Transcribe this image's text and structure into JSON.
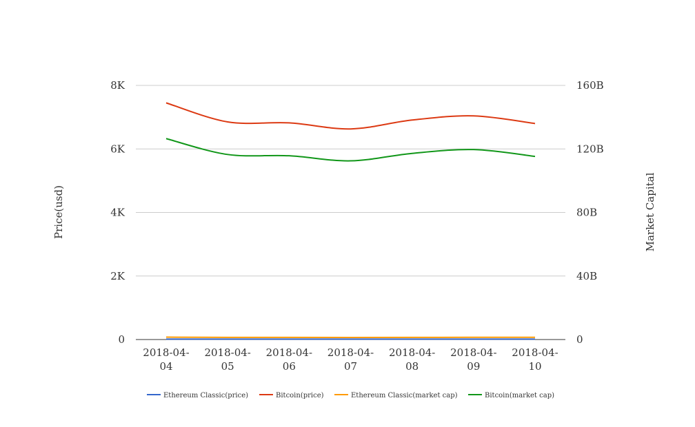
{
  "chart_data": {
    "type": "line",
    "title": "",
    "x": [
      "2018-04-04",
      "2018-04-05",
      "2018-04-06",
      "2018-04-07",
      "2018-04-08",
      "2018-04-09",
      "2018-04-10"
    ],
    "x_tick_labels": [
      [
        "2018-04-",
        "04"
      ],
      [
        "2018-04-",
        "05"
      ],
      [
        "2018-04-",
        "06"
      ],
      [
        "2018-04-",
        "07"
      ],
      [
        "2018-04-",
        "08"
      ],
      [
        "2018-04-",
        "09"
      ],
      [
        "2018-04-",
        "10"
      ]
    ],
    "ylabel_left": "Price(usd)",
    "ylabel_right": "Market Capital",
    "ylim_left": [
      0,
      8000
    ],
    "ylim_right": [
      0,
      160000000000
    ],
    "y_ticks_left": [
      {
        "value": 0,
        "label": "0"
      },
      {
        "value": 2000,
        "label": "2K"
      },
      {
        "value": 4000,
        "label": "4K"
      },
      {
        "value": 6000,
        "label": "6K"
      },
      {
        "value": 8000,
        "label": "8K"
      }
    ],
    "y_ticks_right": [
      {
        "value": 0,
        "label": "0"
      },
      {
        "value": 40000000000,
        "label": "40B"
      },
      {
        "value": 80000000000,
        "label": "80B"
      },
      {
        "value": 120000000000,
        "label": "120B"
      },
      {
        "value": 160000000000,
        "label": "160B"
      }
    ],
    "grid": true,
    "legend_position": "bottom",
    "series": [
      {
        "name": "Ethereum Classic(price)",
        "axis": "left",
        "color": "#3366cc",
        "values": [
          14.5,
          13.6,
          13.4,
          13.2,
          13.6,
          14.0,
          13.9
        ]
      },
      {
        "name": "Bitcoin(price)",
        "axis": "left",
        "color": "#dc3912",
        "values": [
          7450,
          6850,
          6820,
          6630,
          6910,
          7040,
          6800
        ]
      },
      {
        "name": "Ethereum Classic(market cap)",
        "axis": "right",
        "color": "#ff9900",
        "values": [
          1500000000,
          1380000000,
          1350000000,
          1320000000,
          1350000000,
          1420000000,
          1400000000
        ]
      },
      {
        "name": "Bitcoin(market cap)",
        "axis": "right",
        "color": "#109618",
        "values": [
          126500000000,
          116500000000,
          115700000000,
          112500000000,
          117200000000,
          119600000000,
          115300000000
        ]
      }
    ]
  }
}
